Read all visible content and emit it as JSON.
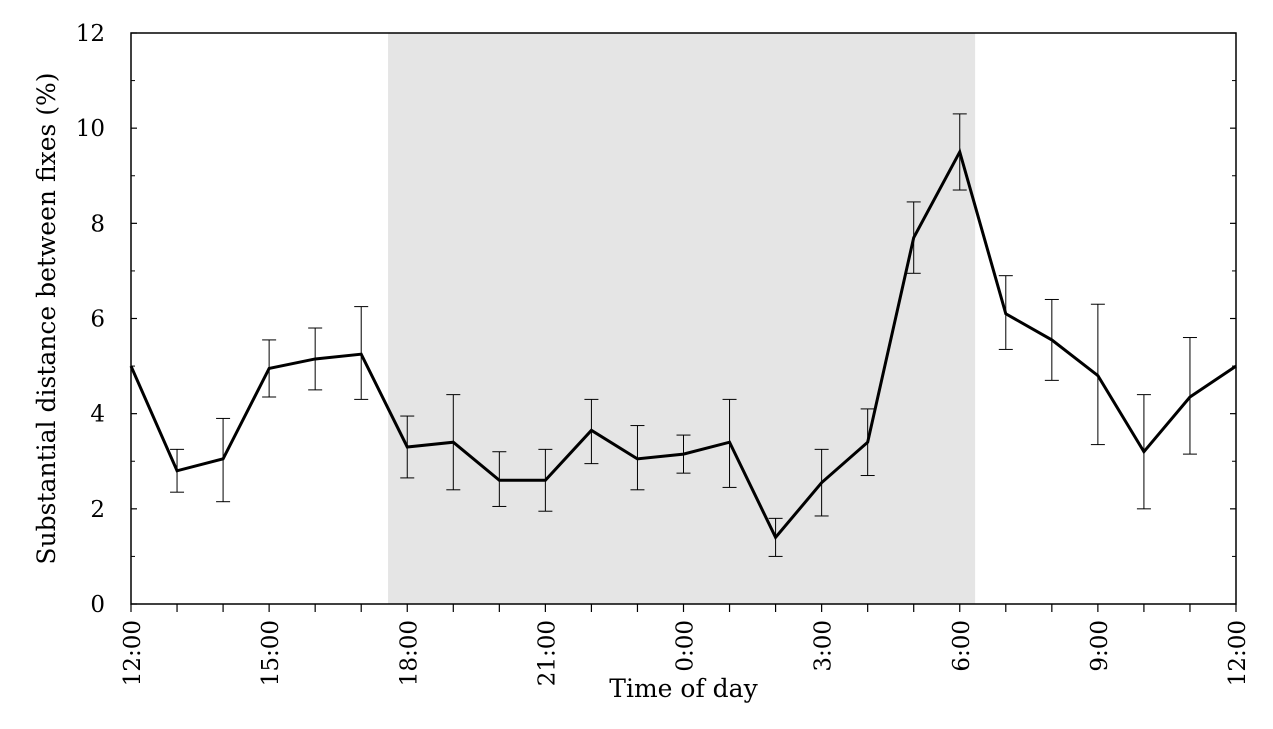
{
  "chart_data": {
    "type": "line",
    "xlabel": "Time of day",
    "ylabel": "Substantial distance between fixes (%)",
    "ylim": [
      0,
      12
    ],
    "y_ticks": [
      0,
      2,
      4,
      6,
      8,
      10,
      12
    ],
    "x_ticks": [
      {
        "hour": 0,
        "label": "12:00"
      },
      {
        "hour": 3,
        "label": "15:00"
      },
      {
        "hour": 6,
        "label": "18:00"
      },
      {
        "hour": 9,
        "label": "21:00"
      },
      {
        "hour": 12,
        "label": "0:00"
      },
      {
        "hour": 15,
        "label": "3:00"
      },
      {
        "hour": 18,
        "label": "6:00"
      },
      {
        "hour": 21,
        "label": "9:00"
      },
      {
        "hour": 24,
        "label": "12:00"
      }
    ],
    "night_shading": {
      "from_label": "17:35",
      "to_label": "6:20",
      "color": "#e5e5e5"
    },
    "series": [
      {
        "color": "#000000",
        "points": [
          {
            "x": "12:00",
            "y": 5.0,
            "err_low": null,
            "err_high": null
          },
          {
            "x": "13:00",
            "y": 2.8,
            "err_low": 2.35,
            "err_high": 3.25
          },
          {
            "x": "14:00",
            "y": 3.05,
            "err_low": 2.15,
            "err_high": 3.9
          },
          {
            "x": "15:00",
            "y": 4.95,
            "err_low": 4.35,
            "err_high": 5.55
          },
          {
            "x": "16:00",
            "y": 5.15,
            "err_low": 4.5,
            "err_high": 5.8
          },
          {
            "x": "17:00",
            "y": 5.25,
            "err_low": 4.3,
            "err_high": 6.25
          },
          {
            "x": "18:00",
            "y": 3.3,
            "err_low": 2.65,
            "err_high": 3.95
          },
          {
            "x": "19:00",
            "y": 3.4,
            "err_low": 2.4,
            "err_high": 4.4
          },
          {
            "x": "20:00",
            "y": 2.6,
            "err_low": 2.05,
            "err_high": 3.2
          },
          {
            "x": "21:00",
            "y": 2.6,
            "err_low": 1.95,
            "err_high": 3.25
          },
          {
            "x": "22:00",
            "y": 3.65,
            "err_low": 2.95,
            "err_high": 4.3
          },
          {
            "x": "23:00",
            "y": 3.05,
            "err_low": 2.4,
            "err_high": 3.75
          },
          {
            "x": "0:00",
            "y": 3.15,
            "err_low": 2.75,
            "err_high": 3.55
          },
          {
            "x": "1:00",
            "y": 3.4,
            "err_low": 2.45,
            "err_high": 4.3
          },
          {
            "x": "2:00",
            "y": 1.4,
            "err_low": 1.0,
            "err_high": 1.8
          },
          {
            "x": "3:00",
            "y": 2.55,
            "err_low": 1.85,
            "err_high": 3.25
          },
          {
            "x": "4:00",
            "y": 3.4,
            "err_low": 2.7,
            "err_high": 4.1
          },
          {
            "x": "5:00",
            "y": 7.7,
            "err_low": 6.95,
            "err_high": 8.45
          },
          {
            "x": "6:00",
            "y": 9.5,
            "err_low": 8.7,
            "err_high": 10.3
          },
          {
            "x": "7:00",
            "y": 6.1,
            "err_low": 5.35,
            "err_high": 6.9
          },
          {
            "x": "8:00",
            "y": 5.55,
            "err_low": 4.7,
            "err_high": 6.4
          },
          {
            "x": "9:00",
            "y": 4.8,
            "err_low": 3.35,
            "err_high": 6.3
          },
          {
            "x": "10:00",
            "y": 3.2,
            "err_low": 2.0,
            "err_high": 4.4
          },
          {
            "x": "11:00",
            "y": 4.35,
            "err_low": 3.15,
            "err_high": 5.6
          },
          {
            "x": "12:00",
            "y": 5.0,
            "err_low": null,
            "err_high": null
          }
        ]
      }
    ]
  }
}
